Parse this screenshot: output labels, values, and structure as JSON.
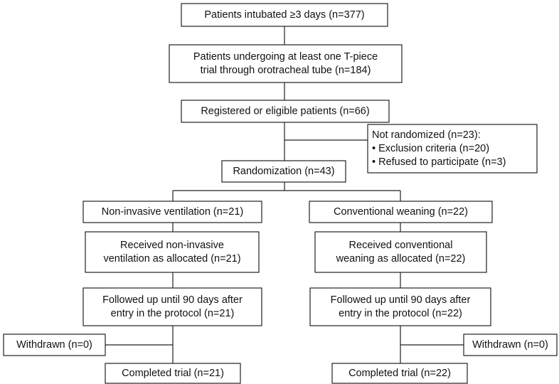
{
  "nodes": [
    {
      "lines": [
        "Patients intubated ≥3 days (n=377)"
      ]
    },
    {
      "lines": [
        "Patients undergoing at least one T-piece",
        "trial through orotracheal tube (n=184)"
      ]
    },
    {
      "lines": [
        "Registered or eligible patients (n=66)"
      ]
    },
    {
      "lines": [
        "Not randomized (n=23):",
        "• Exclusion criteria (n=20)",
        "• Refused to participate (n=3)"
      ]
    },
    {
      "lines": [
        "Randomization (n=43)"
      ]
    },
    {
      "lines": [
        "Non-invasive ventilation (n=21)"
      ]
    },
    {
      "lines": [
        "Conventional weaning (n=22)"
      ]
    },
    {
      "lines": [
        "Received non-invasive",
        "ventilation as allocated (n=21)"
      ]
    },
    {
      "lines": [
        "Received conventional",
        "weaning as allocated (n=22)"
      ]
    },
    {
      "lines": [
        "Followed up until 90 days after",
        "entry in the protocol (n=21)"
      ]
    },
    {
      "lines": [
        "Followed up until 90 days after",
        "entry in the protocol (n=22)"
      ]
    },
    {
      "lines": [
        "Withdrawn (n=0)"
      ]
    },
    {
      "lines": [
        "Withdrawn (n=0)"
      ]
    },
    {
      "lines": [
        "Completed trial (n=21)"
      ]
    },
    {
      "lines": [
        "Completed trial (n=22)"
      ]
    }
  ]
}
